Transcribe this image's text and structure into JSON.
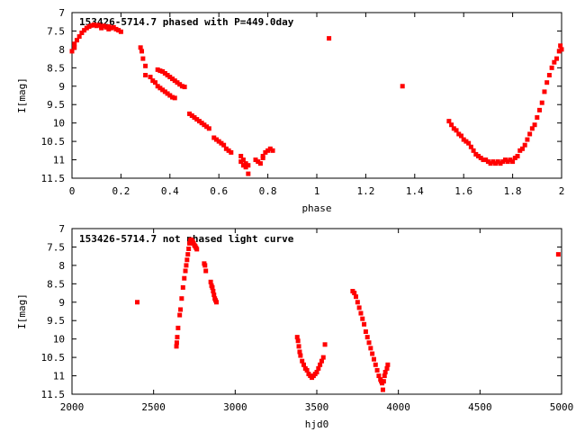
{
  "chart_data": [
    {
      "type": "scatter",
      "title": "153426-5714.7 phased with P=449.0day",
      "xlabel": "phase",
      "ylabel": "I[mag]",
      "xlim": [
        0,
        2
      ],
      "ylim": [
        11.5,
        7
      ],
      "y_inverted": true,
      "xticks": [
        "0",
        "0.2",
        "0.4",
        "0.6",
        "0.8",
        "1",
        "1.2",
        "1.4",
        "1.6",
        "1.8",
        "2"
      ],
      "yticks": [
        "7",
        "7.5",
        "8",
        "8.5",
        "9",
        "9.5",
        "10",
        "10.5",
        "11",
        "11.5"
      ],
      "grid": false,
      "marker_color": "#ff0000",
      "series": [
        {
          "points": [
            [
              0.0,
              8.05
            ],
            [
              0.01,
              7.95
            ],
            [
              0.01,
              7.85
            ],
            [
              0.02,
              7.75
            ],
            [
              0.03,
              7.65
            ],
            [
              0.04,
              7.55
            ],
            [
              0.05,
              7.48
            ],
            [
              0.06,
              7.42
            ],
            [
              0.07,
              7.38
            ],
            [
              0.08,
              7.35
            ],
            [
              0.09,
              7.33
            ],
            [
              0.1,
              7.36
            ],
            [
              0.11,
              7.34
            ],
            [
              0.12,
              7.38
            ],
            [
              0.13,
              7.36
            ],
            [
              0.14,
              7.4
            ],
            [
              0.15,
              7.38
            ],
            [
              0.16,
              7.42
            ],
            [
              0.17,
              7.4
            ],
            [
              0.18,
              7.45
            ],
            [
              0.19,
              7.48
            ],
            [
              0.2,
              7.52
            ],
            [
              0.15,
              7.45
            ],
            [
              0.12,
              7.42
            ],
            [
              0.28,
              7.95
            ],
            [
              0.285,
              8.05
            ],
            [
              0.29,
              8.25
            ],
            [
              0.3,
              8.45
            ],
            [
              0.35,
              8.55
            ],
            [
              0.36,
              8.58
            ],
            [
              0.37,
              8.6
            ],
            [
              0.38,
              8.65
            ],
            [
              0.39,
              8.7
            ],
            [
              0.4,
              8.75
            ],
            [
              0.41,
              8.8
            ],
            [
              0.42,
              8.85
            ],
            [
              0.43,
              8.9
            ],
            [
              0.44,
              8.95
            ],
            [
              0.45,
              9.0
            ],
            [
              0.46,
              9.02
            ],
            [
              0.3,
              8.7
            ],
            [
              0.32,
              8.75
            ],
            [
              0.33,
              8.85
            ],
            [
              0.34,
              8.9
            ],
            [
              0.35,
              9.0
            ],
            [
              0.36,
              9.05
            ],
            [
              0.37,
              9.1
            ],
            [
              0.38,
              9.15
            ],
            [
              0.39,
              9.2
            ],
            [
              0.4,
              9.25
            ],
            [
              0.41,
              9.3
            ],
            [
              0.42,
              9.32
            ],
            [
              0.48,
              9.75
            ],
            [
              0.49,
              9.8
            ],
            [
              0.5,
              9.85
            ],
            [
              0.51,
              9.9
            ],
            [
              0.52,
              9.95
            ],
            [
              0.53,
              10.0
            ],
            [
              0.54,
              10.05
            ],
            [
              0.55,
              10.1
            ],
            [
              0.56,
              10.15
            ],
            [
              0.58,
              10.4
            ],
            [
              0.59,
              10.45
            ],
            [
              0.6,
              10.5
            ],
            [
              0.61,
              10.55
            ],
            [
              0.62,
              10.6
            ],
            [
              0.63,
              10.7
            ],
            [
              0.64,
              10.75
            ],
            [
              0.65,
              10.8
            ],
            [
              0.69,
              10.9
            ],
            [
              0.69,
              11.05
            ],
            [
              0.7,
              11.15
            ],
            [
              0.7,
              11.0
            ],
            [
              0.71,
              11.1
            ],
            [
              0.71,
              11.2
            ],
            [
              0.72,
              11.15
            ],
            [
              0.72,
              11.38
            ],
            [
              0.75,
              11.0
            ],
            [
              0.76,
              11.05
            ],
            [
              0.77,
              11.1
            ],
            [
              0.78,
              10.9
            ],
            [
              0.78,
              10.95
            ],
            [
              0.79,
              10.8
            ],
            [
              0.8,
              10.75
            ],
            [
              0.81,
              10.7
            ],
            [
              0.82,
              10.75
            ],
            [
              1.05,
              7.7
            ],
            [
              1.35,
              9.0
            ],
            [
              1.54,
              9.95
            ],
            [
              1.55,
              10.05
            ],
            [
              1.56,
              10.15
            ],
            [
              1.57,
              10.2
            ],
            [
              1.58,
              10.3
            ],
            [
              1.59,
              10.35
            ],
            [
              1.6,
              10.45
            ],
            [
              1.61,
              10.5
            ],
            [
              1.62,
              10.55
            ],
            [
              1.63,
              10.65
            ],
            [
              1.64,
              10.75
            ],
            [
              1.65,
              10.85
            ],
            [
              1.66,
              10.9
            ],
            [
              1.67,
              10.95
            ],
            [
              1.68,
              11.0
            ],
            [
              1.69,
              11.0
            ],
            [
              1.7,
              11.05
            ],
            [
              1.71,
              11.1
            ],
            [
              1.72,
              11.05
            ],
            [
              1.73,
              11.1
            ],
            [
              1.74,
              11.05
            ],
            [
              1.75,
              11.1
            ],
            [
              1.76,
              11.05
            ],
            [
              1.77,
              11.0
            ],
            [
              1.78,
              11.05
            ],
            [
              1.79,
              11.0
            ],
            [
              1.8,
              11.05
            ],
            [
              1.81,
              10.95
            ],
            [
              1.82,
              10.9
            ],
            [
              1.83,
              10.75
            ],
            [
              1.84,
              10.7
            ],
            [
              1.85,
              10.6
            ],
            [
              1.86,
              10.45
            ],
            [
              1.87,
              10.3
            ],
            [
              1.88,
              10.15
            ],
            [
              1.89,
              10.05
            ],
            [
              1.9,
              9.85
            ],
            [
              1.91,
              9.65
            ],
            [
              1.92,
              9.45
            ],
            [
              1.93,
              9.15
            ],
            [
              1.94,
              8.9
            ],
            [
              1.95,
              8.7
            ],
            [
              1.96,
              8.5
            ],
            [
              1.97,
              8.35
            ],
            [
              1.98,
              8.25
            ],
            [
              1.99,
              8.05
            ],
            [
              1.995,
              7.9
            ],
            [
              2.0,
              8.0
            ]
          ]
        }
      ]
    },
    {
      "type": "scatter",
      "title": "153426-5714.7 not phased light curve",
      "xlabel": "hjd0",
      "ylabel": "I[mag]",
      "xlim": [
        2000,
        5000
      ],
      "ylim": [
        11.5,
        7
      ],
      "y_inverted": true,
      "xticks": [
        "2000",
        "2500",
        "3000",
        "3500",
        "4000",
        "4500",
        "5000"
      ],
      "yticks": [
        "7",
        "7.5",
        "8",
        "8.5",
        "9",
        "9.5",
        "10",
        "10.5",
        "11",
        "11.5"
      ],
      "grid": false,
      "marker_color": "#ff0000",
      "series": [
        {
          "points": [
            [
              2400,
              9.0
            ],
            [
              2640,
              10.2
            ],
            [
              2642,
              10.1
            ],
            [
              2645,
              9.95
            ],
            [
              2650,
              9.7
            ],
            [
              2660,
              9.35
            ],
            [
              2665,
              9.2
            ],
            [
              2672,
              8.9
            ],
            [
              2680,
              8.6
            ],
            [
              2688,
              8.35
            ],
            [
              2695,
              8.15
            ],
            [
              2700,
              8.0
            ],
            [
              2705,
              7.85
            ],
            [
              2710,
              7.7
            ],
            [
              2715,
              7.55
            ],
            [
              2720,
              7.4
            ],
            [
              2725,
              7.32
            ],
            [
              2730,
              7.3
            ],
            [
              2735,
              7.33
            ],
            [
              2740,
              7.36
            ],
            [
              2745,
              7.4
            ],
            [
              2750,
              7.45
            ],
            [
              2755,
              7.48
            ],
            [
              2760,
              7.52
            ],
            [
              2765,
              7.56
            ],
            [
              2810,
              7.95
            ],
            [
              2815,
              8.0
            ],
            [
              2820,
              8.15
            ],
            [
              2850,
              8.45
            ],
            [
              2855,
              8.55
            ],
            [
              2860,
              8.6
            ],
            [
              2865,
              8.7
            ],
            [
              2870,
              8.8
            ],
            [
              2875,
              8.9
            ],
            [
              2880,
              8.95
            ],
            [
              2885,
              9.0
            ],
            [
              3380,
              9.95
            ],
            [
              3385,
              10.05
            ],
            [
              3390,
              10.2
            ],
            [
              3395,
              10.35
            ],
            [
              3400,
              10.45
            ],
            [
              3410,
              10.6
            ],
            [
              3420,
              10.7
            ],
            [
              3430,
              10.8
            ],
            [
              3440,
              10.85
            ],
            [
              3450,
              10.95
            ],
            [
              3460,
              11.0
            ],
            [
              3470,
              11.05
            ],
            [
              3480,
              11.0
            ],
            [
              3490,
              10.95
            ],
            [
              3500,
              10.9
            ],
            [
              3510,
              10.8
            ],
            [
              3520,
              10.7
            ],
            [
              3530,
              10.6
            ],
            [
              3540,
              10.5
            ],
            [
              3550,
              10.15
            ],
            [
              3720,
              8.7
            ],
            [
              3730,
              8.75
            ],
            [
              3740,
              8.85
            ],
            [
              3750,
              9.0
            ],
            [
              3760,
              9.15
            ],
            [
              3770,
              9.3
            ],
            [
              3780,
              9.45
            ],
            [
              3790,
              9.6
            ],
            [
              3800,
              9.8
            ],
            [
              3810,
              9.95
            ],
            [
              3820,
              10.1
            ],
            [
              3830,
              10.25
            ],
            [
              3840,
              10.4
            ],
            [
              3850,
              10.55
            ],
            [
              3860,
              10.7
            ],
            [
              3870,
              10.85
            ],
            [
              3880,
              11.0
            ],
            [
              3890,
              11.1
            ],
            [
              3895,
              11.15
            ],
            [
              3900,
              11.2
            ],
            [
              3905,
              11.38
            ],
            [
              3910,
              11.15
            ],
            [
              3915,
              11.0
            ],
            [
              3920,
              10.9
            ],
            [
              3930,
              10.8
            ],
            [
              3935,
              10.7
            ],
            [
              4980,
              7.7
            ]
          ]
        }
      ]
    }
  ]
}
